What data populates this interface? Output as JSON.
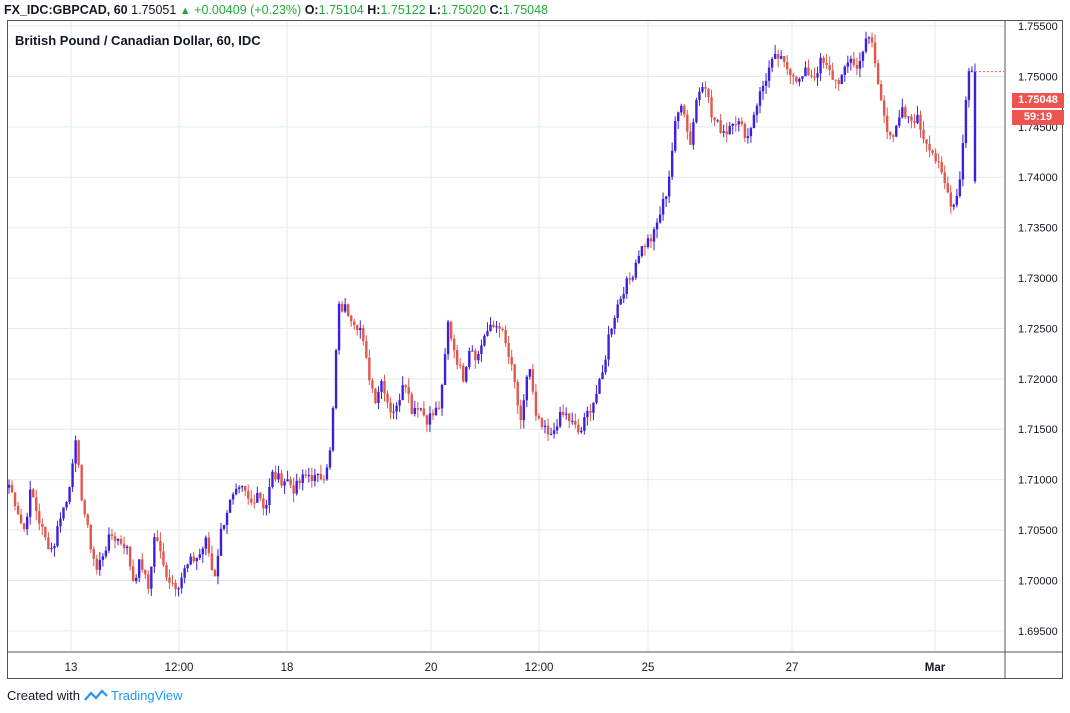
{
  "header": {
    "symbol": "FX_IDC:GBPCAD, 60",
    "last": "1.75051",
    "change": "+0.00409 (+0.23%)",
    "o_label": "O:",
    "o_value": "1.75104",
    "h_label": "H:",
    "h_value": "1.75122",
    "l_label": "L:",
    "l_value": "1.75020",
    "c_label": "C:",
    "c_value": "1.75048"
  },
  "chart_title": "British Pound / Canadian Dollar, 60, IDC",
  "price_tag": {
    "price": "1.75048",
    "countdown": "59:19"
  },
  "footer": {
    "created_with": "Created with",
    "brand": "TradingView"
  },
  "colors": {
    "up": "#3f1fd9",
    "down": "#e2574c",
    "grid": "#e1ecf2",
    "tag": "#ef5350"
  },
  "chart_data": {
    "type": "candlestick",
    "title": "British Pound / Canadian Dollar, 60, IDC",
    "ylim": [
      1.693,
      1.7555
    ],
    "y_ticks": [
      "1.75500",
      "1.75000",
      "1.74500",
      "1.74000",
      "1.73500",
      "1.73000",
      "1.72500",
      "1.72000",
      "1.71500",
      "1.71000",
      "1.70500",
      "1.70000",
      "1.69500"
    ],
    "x_ticks": [
      "13",
      "12:00",
      "18",
      "20",
      "12:00",
      "25",
      "27",
      "Mar"
    ],
    "grid": true,
    "path": [
      [
        1.7095,
        1.7075,
        1.7048,
        1.709,
        1.7062,
        1.704,
        1.703,
        1.7065,
        1.708,
        1.714,
        1.708,
        1.704,
        1.701,
        1.703,
        1.7045,
        1.704,
        1.7035,
        1.7,
        1.702,
        1.699,
        1.705,
        1.7015,
        1.7,
        1.6995,
        1.701,
        1.702,
        1.7025,
        1.704
      ],
      [
        1.7,
        1.705,
        1.7075,
        1.7085,
        1.709,
        1.7075,
        1.709,
        1.707,
        1.7105,
        1.71,
        1.71,
        1.709,
        1.71,
        1.7105,
        1.71,
        1.7105,
        1.713,
        1.727,
        1.727,
        1.726,
        1.725,
        1.721,
        1.718,
        1.72,
        1.717,
        1.717,
        1.7205,
        1.717
      ],
      [
        1.7175,
        1.716,
        1.7165,
        1.7175,
        1.7255,
        1.7225,
        1.72,
        1.7235,
        1.722,
        1.7245,
        1.725,
        1.7255,
        1.723,
        1.72,
        1.715,
        1.722,
        1.716,
        1.715,
        1.714,
        1.716,
        1.7165,
        1.7155,
        1.7145,
        1.7165,
        1.718,
        1.72,
        1.7245,
        1.727
      ],
      [
        1.729,
        1.73,
        1.7325,
        1.7335,
        1.734,
        1.7365,
        1.739,
        1.745,
        1.748,
        1.743,
        1.748,
        1.75,
        1.746,
        1.745,
        1.7445,
        1.746,
        1.745,
        1.744,
        1.747,
        1.749,
        1.751,
        1.752,
        1.751,
        1.7505,
        1.7495,
        1.7505,
        1.75,
        1.7515
      ],
      [
        1.7505,
        1.7495,
        1.75,
        1.752,
        1.7505,
        1.754,
        1.753,
        1.748,
        1.745,
        1.744,
        1.7465,
        1.7455,
        1.746,
        1.744,
        1.743,
        1.741,
        1.739,
        1.737,
        1.74,
        1.7505,
        1.75048
      ]
    ]
  }
}
